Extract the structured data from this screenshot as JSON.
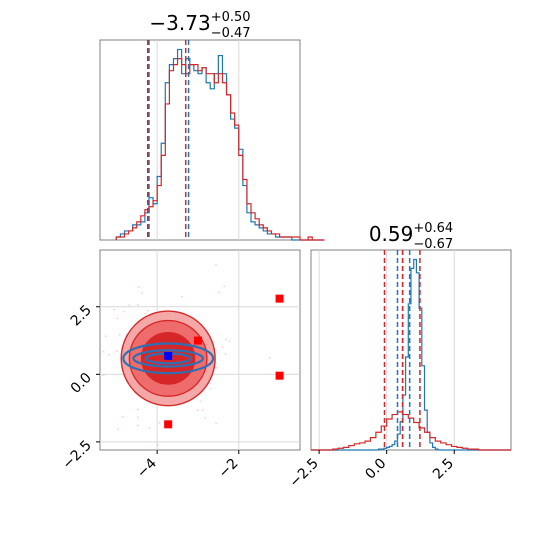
{
  "chart_data": [
    {
      "type": "histogram",
      "panel": "marginal-x",
      "title": {
        "value": "−3.73",
        "plus": "+0.50",
        "minus": "−0.47"
      },
      "xlim": [
        -5.4,
        -0.5
      ],
      "grid": true,
      "series": [
        {
          "color": "#1f77b4",
          "bin_width": 0.1,
          "bin_start": -5.0,
          "counts": [
            1,
            2,
            3,
            3,
            5,
            5,
            6,
            9,
            14,
            12,
            21,
            32,
            52,
            58,
            60,
            63,
            55,
            60,
            58,
            56,
            55,
            57,
            52,
            50,
            55,
            61,
            55,
            48,
            40,
            37,
            30,
            18,
            9,
            6,
            5,
            4,
            3,
            2,
            2,
            1,
            1,
            1,
            1,
            0,
            0,
            0,
            0,
            0,
            0,
            0,
            0
          ],
          "quantiles": [
            -4.2,
            -3.73,
            -3.23
          ]
        },
        {
          "color": "#d62728",
          "bin_width": 0.1,
          "bin_start": -5.0,
          "counts": [
            1,
            1,
            2,
            3,
            4,
            6,
            8,
            10,
            11,
            13,
            18,
            28,
            45,
            56,
            58,
            60,
            58,
            55,
            58,
            58,
            56,
            57,
            55,
            55,
            52,
            55,
            52,
            48,
            42,
            38,
            28,
            20,
            12,
            9,
            7,
            5,
            4,
            3,
            2,
            2,
            1,
            1,
            1,
            1,
            1,
            0,
            0,
            1,
            0,
            0,
            0
          ],
          "quantiles": [
            -4.23,
            -3.73,
            -3.3
          ]
        }
      ]
    },
    {
      "type": "contour",
      "panel": "joint",
      "xlim": [
        -5.4,
        -0.5
      ],
      "ylim": [
        -2.8,
        4.6
      ],
      "xticks": [
        "−4",
        "−2"
      ],
      "yticks": [
        "−2.5",
        "0.0",
        "2.5"
      ],
      "xtick_values": [
        -4,
        -2
      ],
      "ytick_values": [
        -2.5,
        0.0,
        2.5
      ],
      "grid": true,
      "contours_red": [
        {
          "cx": -3.73,
          "cy": 0.59,
          "rx": 1.15,
          "ry": 1.75,
          "fill": "#f4a9a8"
        },
        {
          "cx": -3.73,
          "cy": 0.59,
          "rx": 0.95,
          "ry": 1.4,
          "fill": "#ee6d6c"
        },
        {
          "cx": -3.73,
          "cy": 0.59,
          "rx": 0.65,
          "ry": 0.95,
          "fill": "#d62728"
        }
      ],
      "contours_blue": [
        {
          "cx": -3.73,
          "cy": 0.59,
          "rx": 1.1,
          "ry": 0.55
        },
        {
          "cx": -3.73,
          "cy": 0.59,
          "rx": 0.85,
          "ry": 0.3
        },
        {
          "cx": -3.73,
          "cy": 0.59,
          "rx": 0.55,
          "ry": 0.18
        }
      ],
      "markers_red": [
        {
          "x": -1.0,
          "y": 2.8
        },
        {
          "x": -3.0,
          "y": 1.25
        },
        {
          "x": -1.0,
          "y": -0.05
        },
        {
          "x": -3.73,
          "y": -1.85
        }
      ],
      "marker_blue": {
        "x": -3.73,
        "y": 0.68
      }
    },
    {
      "type": "histogram",
      "panel": "marginal-y",
      "title": {
        "value": "0.59",
        "plus": "+0.64",
        "minus": "−0.67"
      },
      "xlim": [
        -2.8,
        4.6
      ],
      "xticks": [
        "−2.5",
        "0.0",
        "2.5"
      ],
      "xtick_values": [
        -2.5,
        0.0,
        2.5
      ],
      "grid": true,
      "series": [
        {
          "color": "#1f77b4",
          "bin_width": 0.1,
          "bin_start": -0.6,
          "counts": [
            0,
            0,
            0,
            1,
            1,
            2,
            3,
            4,
            6,
            10,
            18,
            32,
            62,
            105,
            165,
            205,
            215,
            200,
            160,
            95,
            45,
            20,
            8,
            3,
            1,
            0,
            0
          ],
          "quantiles": [
            0.4,
            0.59,
            0.85
          ]
        },
        {
          "color": "#d62728",
          "bin_width": 0.2,
          "bin_start": -2.0,
          "counts": [
            1,
            2,
            3,
            5,
            7,
            8,
            10,
            14,
            20,
            27,
            35,
            40,
            43,
            40,
            36,
            31,
            25,
            20,
            14,
            10,
            8,
            6,
            4,
            3,
            2,
            1,
            1
          ],
          "quantiles": [
            -0.08,
            0.59,
            1.23
          ]
        }
      ]
    }
  ]
}
